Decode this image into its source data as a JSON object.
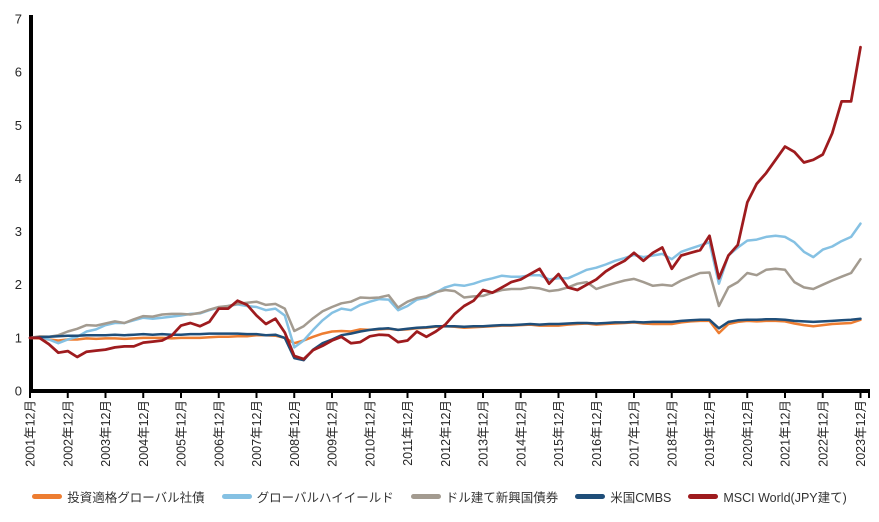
{
  "chart_data": {
    "type": "line",
    "title": "",
    "grid": false,
    "legend_position": "bottom",
    "y_axis": {
      "min": 0,
      "max": 7,
      "ticks": [
        0,
        1,
        2,
        3,
        4,
        5,
        6,
        7
      ]
    },
    "x_axis": {
      "labels": [
        "2001年12月",
        "2002年12月",
        "2003年12月",
        "2004年12月",
        "2005年12月",
        "2006年12月",
        "2007年12月",
        "2008年12月",
        "2009年12月",
        "2010年12月",
        "2011年12月",
        "2012年12月",
        "2013年12月",
        "2014年12月",
        "2015年12月",
        "2016年12月",
        "2017年12月",
        "2018年12月",
        "2019年12月",
        "2020年12月",
        "2021年12月",
        "2022年12月",
        "2023年12月"
      ]
    },
    "points_per_year": 4,
    "base_value": 1.0,
    "colors": {
      "axis": "#000000",
      "tick_text": "#262626"
    },
    "series": [
      {
        "key": "ig-global-corp-bonds",
        "name": "投資適格グローバル社債",
        "color": "#ED7D31",
        "stroke_width": 2.5,
        "values": [
          1.0,
          0.99,
          0.97,
          0.95,
          0.97,
          0.97,
          0.99,
          0.98,
          0.99,
          0.99,
          0.98,
          0.99,
          1.0,
          1.0,
          1.0,
          0.99,
          1.0,
          1.0,
          1.0,
          1.01,
          1.02,
          1.02,
          1.03,
          1.03,
          1.05,
          1.05,
          1.04,
          1.0,
          0.9,
          0.95,
          1.02,
          1.08,
          1.12,
          1.13,
          1.12,
          1.16,
          1.15,
          1.16,
          1.17,
          1.15,
          1.16,
          1.18,
          1.19,
          1.21,
          1.22,
          1.21,
          1.19,
          1.2,
          1.21,
          1.22,
          1.23,
          1.23,
          1.24,
          1.25,
          1.23,
          1.23,
          1.23,
          1.25,
          1.26,
          1.27,
          1.25,
          1.26,
          1.27,
          1.28,
          1.29,
          1.27,
          1.26,
          1.26,
          1.26,
          1.29,
          1.31,
          1.32,
          1.32,
          1.09,
          1.26,
          1.3,
          1.32,
          1.31,
          1.32,
          1.32,
          1.31,
          1.27,
          1.24,
          1.22,
          1.24,
          1.26,
          1.27,
          1.28,
          1.34
        ]
      },
      {
        "key": "global-high-yield",
        "name": "グローバルハイイールド",
        "color": "#85C1E3",
        "stroke_width": 2.5,
        "values": [
          1.0,
          1.02,
          0.97,
          0.9,
          0.97,
          1.02,
          1.12,
          1.16,
          1.24,
          1.28,
          1.28,
          1.33,
          1.38,
          1.36,
          1.38,
          1.4,
          1.42,
          1.45,
          1.46,
          1.52,
          1.57,
          1.6,
          1.63,
          1.6,
          1.58,
          1.52,
          1.55,
          1.42,
          0.82,
          0.95,
          1.15,
          1.33,
          1.47,
          1.55,
          1.52,
          1.62,
          1.68,
          1.73,
          1.72,
          1.52,
          1.6,
          1.72,
          1.76,
          1.85,
          1.95,
          2.0,
          1.98,
          2.02,
          2.08,
          2.12,
          2.17,
          2.15,
          2.15,
          2.18,
          2.18,
          2.1,
          2.12,
          2.12,
          2.2,
          2.28,
          2.32,
          2.38,
          2.45,
          2.5,
          2.56,
          2.52,
          2.55,
          2.58,
          2.48,
          2.62,
          2.68,
          2.74,
          2.8,
          2.02,
          2.55,
          2.7,
          2.83,
          2.85,
          2.9,
          2.92,
          2.9,
          2.8,
          2.62,
          2.52,
          2.66,
          2.72,
          2.82,
          2.9,
          3.15
        ]
      },
      {
        "key": "usd-em-bonds",
        "name": "ドル建て新興国債券",
        "color": "#A39B90",
        "stroke_width": 2.5,
        "values": [
          1.0,
          1.03,
          1.02,
          1.05,
          1.12,
          1.17,
          1.24,
          1.23,
          1.27,
          1.31,
          1.28,
          1.35,
          1.41,
          1.4,
          1.44,
          1.45,
          1.45,
          1.44,
          1.47,
          1.53,
          1.58,
          1.6,
          1.64,
          1.66,
          1.68,
          1.62,
          1.64,
          1.55,
          1.13,
          1.22,
          1.37,
          1.5,
          1.58,
          1.65,
          1.68,
          1.76,
          1.75,
          1.76,
          1.8,
          1.57,
          1.68,
          1.75,
          1.78,
          1.86,
          1.9,
          1.88,
          1.76,
          1.78,
          1.79,
          1.85,
          1.9,
          1.92,
          1.92,
          1.95,
          1.93,
          1.88,
          1.9,
          1.95,
          2.02,
          2.05,
          1.92,
          1.98,
          2.03,
          2.08,
          2.11,
          2.05,
          1.98,
          2.0,
          1.98,
          2.08,
          2.15,
          2.22,
          2.23,
          1.6,
          1.95,
          2.05,
          2.22,
          2.18,
          2.28,
          2.3,
          2.28,
          2.05,
          1.95,
          1.92,
          2.0,
          2.08,
          2.15,
          2.22,
          2.48
        ]
      },
      {
        "key": "us-cmbs",
        "name": "米国CMBS",
        "color": "#1F4E79",
        "stroke_width": 2.5,
        "values": [
          1.0,
          1.01,
          1.02,
          1.03,
          1.04,
          1.04,
          1.05,
          1.05,
          1.05,
          1.06,
          1.05,
          1.06,
          1.07,
          1.06,
          1.07,
          1.06,
          1.06,
          1.07,
          1.07,
          1.08,
          1.08,
          1.08,
          1.08,
          1.07,
          1.07,
          1.05,
          1.06,
          1.0,
          0.62,
          0.58,
          0.78,
          0.9,
          0.97,
          1.05,
          1.08,
          1.12,
          1.15,
          1.17,
          1.18,
          1.15,
          1.17,
          1.19,
          1.2,
          1.22,
          1.22,
          1.22,
          1.21,
          1.22,
          1.22,
          1.23,
          1.24,
          1.24,
          1.25,
          1.26,
          1.25,
          1.26,
          1.26,
          1.27,
          1.28,
          1.28,
          1.27,
          1.28,
          1.29,
          1.29,
          1.3,
          1.29,
          1.3,
          1.3,
          1.3,
          1.32,
          1.33,
          1.34,
          1.34,
          1.18,
          1.3,
          1.33,
          1.34,
          1.34,
          1.35,
          1.35,
          1.34,
          1.32,
          1.31,
          1.3,
          1.31,
          1.32,
          1.33,
          1.34,
          1.36
        ]
      },
      {
        "key": "msci-world-jpy",
        "name": "MSCI World(JPY建て)",
        "color": "#9E1B1E",
        "stroke_width": 2.75,
        "values": [
          1.0,
          1.0,
          0.88,
          0.72,
          0.75,
          0.64,
          0.74,
          0.76,
          0.78,
          0.82,
          0.84,
          0.84,
          0.91,
          0.93,
          0.95,
          1.04,
          1.23,
          1.28,
          1.22,
          1.3,
          1.55,
          1.55,
          1.7,
          1.62,
          1.42,
          1.26,
          1.36,
          1.1,
          0.66,
          0.6,
          0.77,
          0.85,
          0.95,
          1.02,
          0.9,
          0.92,
          1.03,
          1.06,
          1.05,
          0.92,
          0.95,
          1.12,
          1.02,
          1.12,
          1.25,
          1.45,
          1.6,
          1.7,
          1.9,
          1.85,
          1.95,
          2.05,
          2.1,
          2.2,
          2.3,
          2.02,
          2.2,
          1.95,
          1.9,
          2.0,
          2.1,
          2.25,
          2.36,
          2.45,
          2.6,
          2.45,
          2.6,
          2.7,
          2.3,
          2.55,
          2.6,
          2.65,
          2.92,
          2.12,
          2.55,
          2.75,
          3.55,
          3.9,
          4.1,
          4.35,
          4.6,
          4.5,
          4.3,
          4.35,
          4.45,
          4.85,
          5.45,
          5.45,
          6.47
        ]
      }
    ]
  }
}
